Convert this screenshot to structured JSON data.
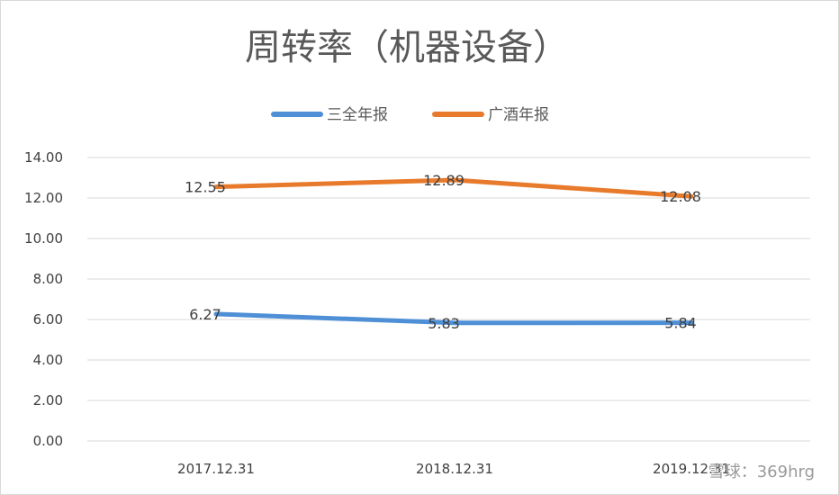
{
  "chart_data": {
    "type": "line",
    "title": "周转率（机器设备）",
    "categories": [
      "2017.12.31",
      "2018.12.31",
      "2019.12.31"
    ],
    "series": [
      {
        "name": "三全年报",
        "values": [
          6.27,
          5.83,
          5.84
        ],
        "labels": [
          "6.27",
          "5.83",
          "5.84"
        ],
        "color": "#4f8fd6"
      },
      {
        "name": "广酒年报",
        "values": [
          12.55,
          12.89,
          12.08
        ],
        "labels": [
          "12.55",
          "12.89",
          "12.08"
        ],
        "color": "#e87a2b"
      }
    ],
    "y_ticks": [
      "0.00",
      "2.00",
      "4.00",
      "6.00",
      "8.00",
      "10.00",
      "12.00",
      "14.00"
    ],
    "ylim": [
      0,
      14
    ],
    "grid": true,
    "legend_position": "top-center"
  },
  "watermark": "雪球：369hrg",
  "colors": {
    "gridline": "#d9d9d9",
    "text": "#595959"
  }
}
